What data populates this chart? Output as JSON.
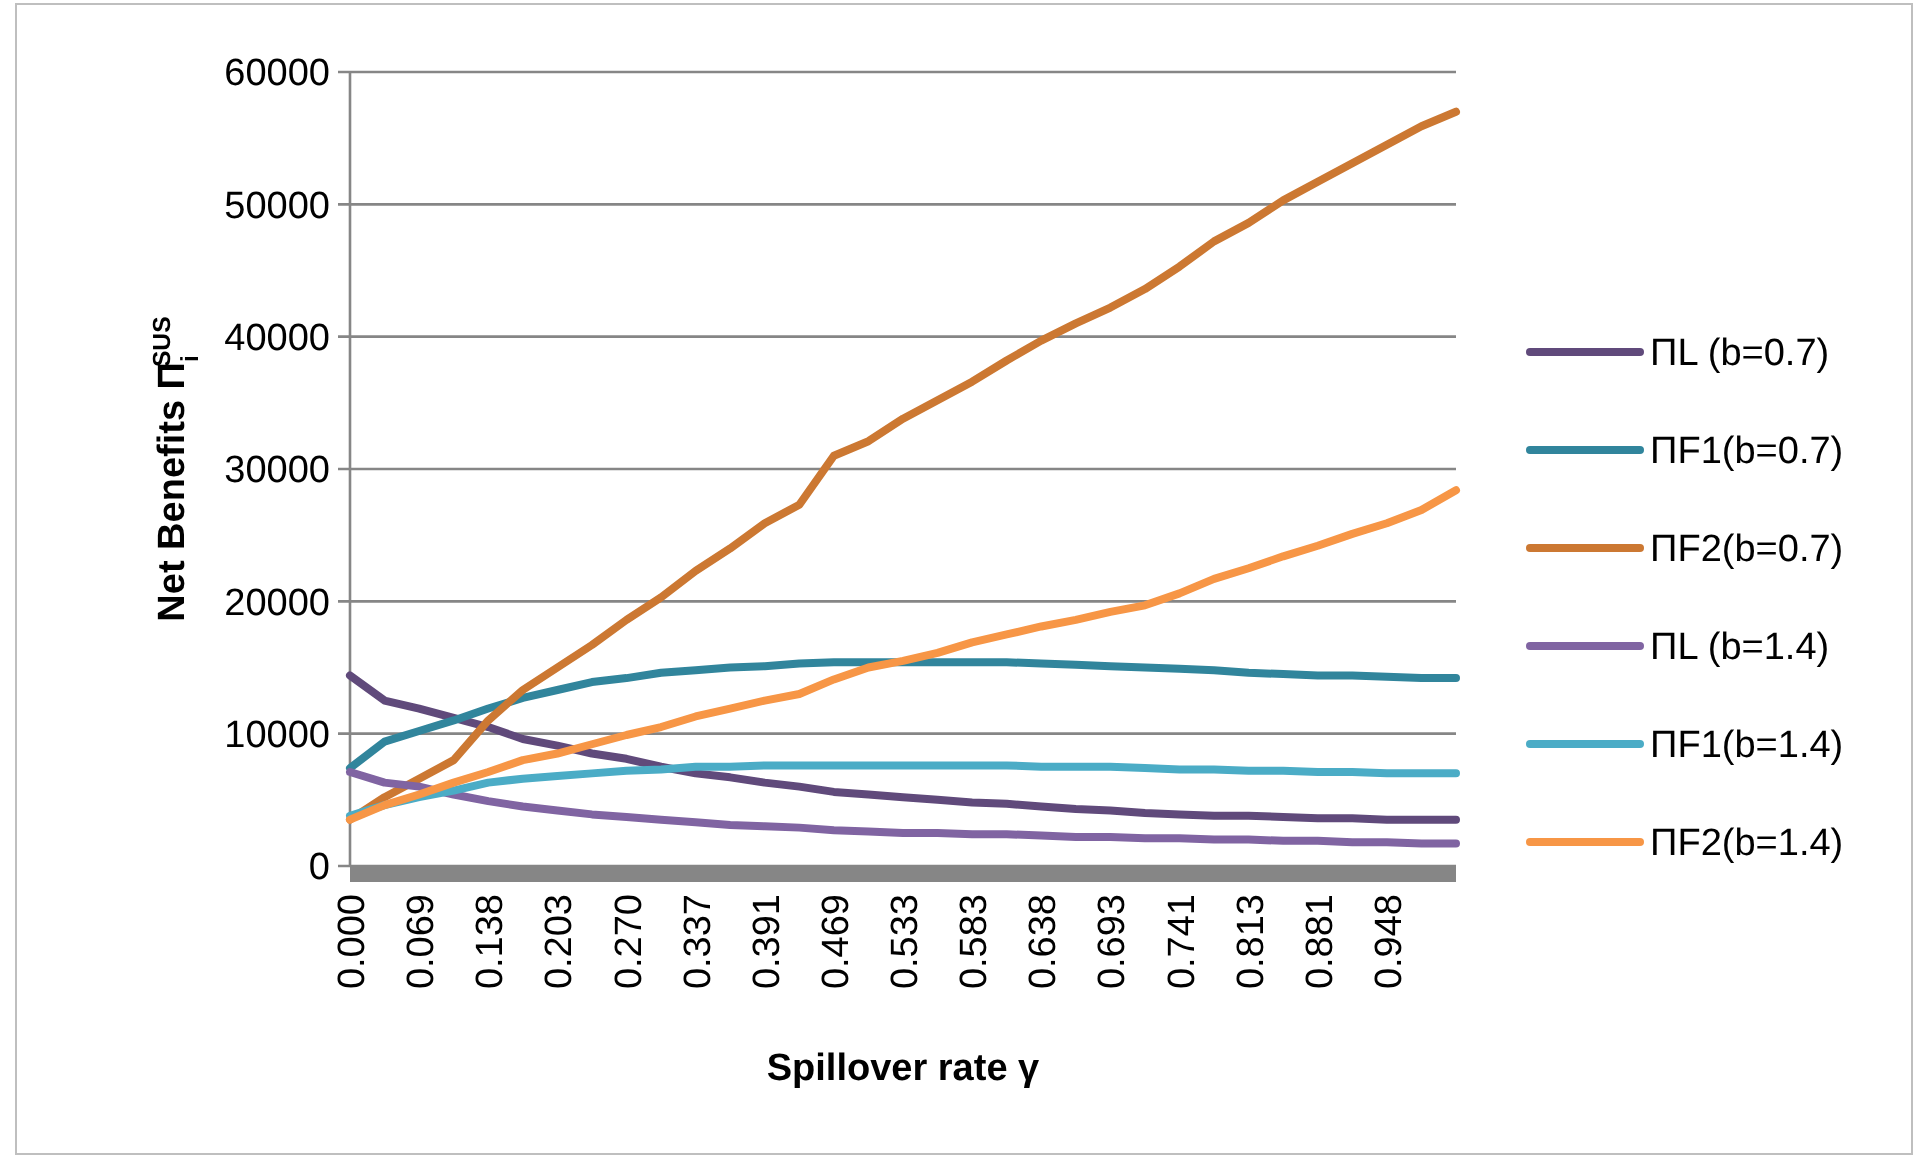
{
  "chart_data": {
    "type": "line",
    "xlabel": "Spillover rate γ",
    "ylabel": "Net Benefits Π$_{i}$$^{SUS}$",
    "categories": [
      "0.000",
      null,
      "0.069",
      null,
      "0.138",
      null,
      "0.203",
      null,
      "0.270",
      null,
      "0.337",
      null,
      "0.391",
      null,
      "0.469",
      null,
      "0.533",
      null,
      "0.583",
      null,
      "0.638",
      null,
      "0.693",
      null,
      "0.741",
      null,
      "0.813",
      null,
      "0.881",
      null,
      "0.948",
      null,
      null
    ],
    "ylim": [
      0,
      60000
    ],
    "yticks": [
      0,
      10000,
      20000,
      30000,
      40000,
      50000,
      60000
    ],
    "grid": "y",
    "legend": "right",
    "marker": "none",
    "line_style": "solid",
    "series": [
      {
        "name": "ΠL (b=0.7)",
        "color": "#604a7b",
        "values": [
          14400,
          12500,
          11900,
          11200,
          10500,
          9600,
          9100,
          8500,
          8100,
          7500,
          7000,
          6700,
          6300,
          6000,
          5600,
          5400,
          5200,
          5000,
          4800,
          4700,
          4500,
          4300,
          4200,
          4000,
          3900,
          3800,
          3800,
          3700,
          3600,
          3600,
          3500,
          3500,
          3500
        ]
      },
      {
        "name": "ΠF1(b=0.7)",
        "color": "#31859c",
        "values": [
          7400,
          9400,
          10200,
          11000,
          11900,
          12700,
          13300,
          13900,
          14200,
          14600,
          14800,
          15000,
          15100,
          15300,
          15400,
          15400,
          15400,
          15400,
          15400,
          15400,
          15300,
          15200,
          15100,
          15000,
          14900,
          14800,
          14600,
          14500,
          14400,
          14400,
          14300,
          14200,
          14200
        ]
      },
      {
        "name": "ΠF2(b=0.7)",
        "color": "#cc7832",
        "values": [
          3500,
          5200,
          6600,
          8000,
          11000,
          13300,
          15000,
          16700,
          18600,
          20300,
          22300,
          24000,
          25900,
          27300,
          31000,
          32100,
          33800,
          35200,
          36600,
          38200,
          39700,
          41000,
          42200,
          43600,
          45300,
          47200,
          48600,
          50300,
          51700,
          53100,
          54500,
          55900,
          57000
        ]
      },
      {
        "name": "ΠL (b=1.4)",
        "color": "#8064a2",
        "values": [
          7100,
          6300,
          6000,
          5400,
          4900,
          4500,
          4200,
          3900,
          3700,
          3500,
          3300,
          3100,
          3000,
          2900,
          2700,
          2600,
          2500,
          2500,
          2400,
          2400,
          2300,
          2200,
          2200,
          2100,
          2100,
          2000,
          2000,
          1900,
          1900,
          1800,
          1800,
          1700,
          1700
        ]
      },
      {
        "name": "ΠF1(b=1.4)",
        "color": "#4bacc6",
        "values": [
          3800,
          4600,
          5200,
          5700,
          6300,
          6600,
          6800,
          7000,
          7200,
          7300,
          7500,
          7500,
          7600,
          7600,
          7600,
          7600,
          7600,
          7600,
          7600,
          7600,
          7500,
          7500,
          7500,
          7400,
          7300,
          7300,
          7200,
          7200,
          7100,
          7100,
          7000,
          7000,
          7000
        ]
      },
      {
        "name": "ΠF2(b=1.4)",
        "color": "#f79646",
        "values": [
          3500,
          4600,
          5400,
          6300,
          7100,
          8000,
          8500,
          9200,
          9900,
          10500,
          11300,
          11900,
          12500,
          13000,
          14100,
          15000,
          15500,
          16100,
          16900,
          17500,
          18100,
          18600,
          19200,
          19700,
          20600,
          21700,
          22500,
          23400,
          24200,
          25100,
          25900,
          26900,
          28400
        ]
      }
    ]
  }
}
